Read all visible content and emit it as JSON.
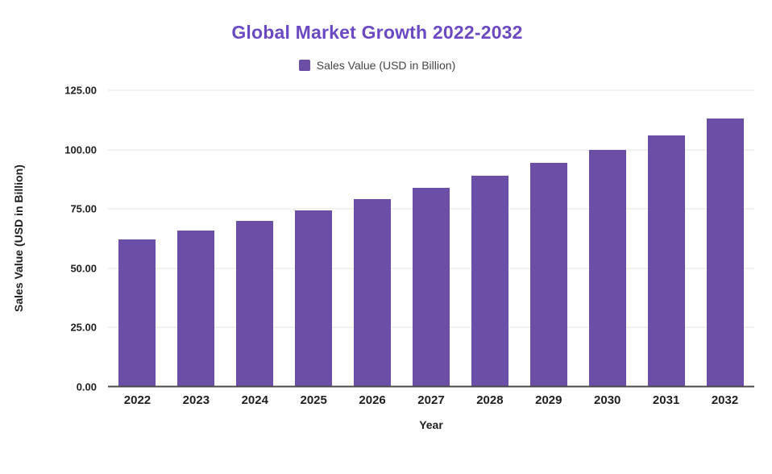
{
  "chart_data": {
    "type": "bar",
    "title": "Global Market Growth 2022-2032",
    "legend": "Sales Value (USD in Billion)",
    "xlabel": "Year",
    "ylabel": "Sales Value (USD in Billion)",
    "categories": [
      "2022",
      "2023",
      "2024",
      "2025",
      "2026",
      "2027",
      "2028",
      "2029",
      "2030",
      "2031",
      "2032"
    ],
    "values": [
      62,
      66,
      70,
      74.5,
      79,
      84,
      89,
      94.5,
      100,
      106,
      113
    ],
    "ylim": [
      0,
      125
    ],
    "y_ticks": [
      {
        "value": 0,
        "label": "0.00"
      },
      {
        "value": 25,
        "label": "25.00"
      },
      {
        "value": 50,
        "label": "50.00"
      },
      {
        "value": 75,
        "label": "75.00"
      },
      {
        "value": 100,
        "label": "100.00"
      },
      {
        "value": 125,
        "label": "125.00"
      }
    ],
    "grid": "horizontal",
    "legend_position": "top"
  },
  "colors": {
    "bar": "#6B4EA5",
    "title": "#6A49C2",
    "gridline": "#e3e3e3",
    "axis_line": "#4a4a4a",
    "tick_label": "#1f1f1f",
    "legend_text": "#444444"
  }
}
